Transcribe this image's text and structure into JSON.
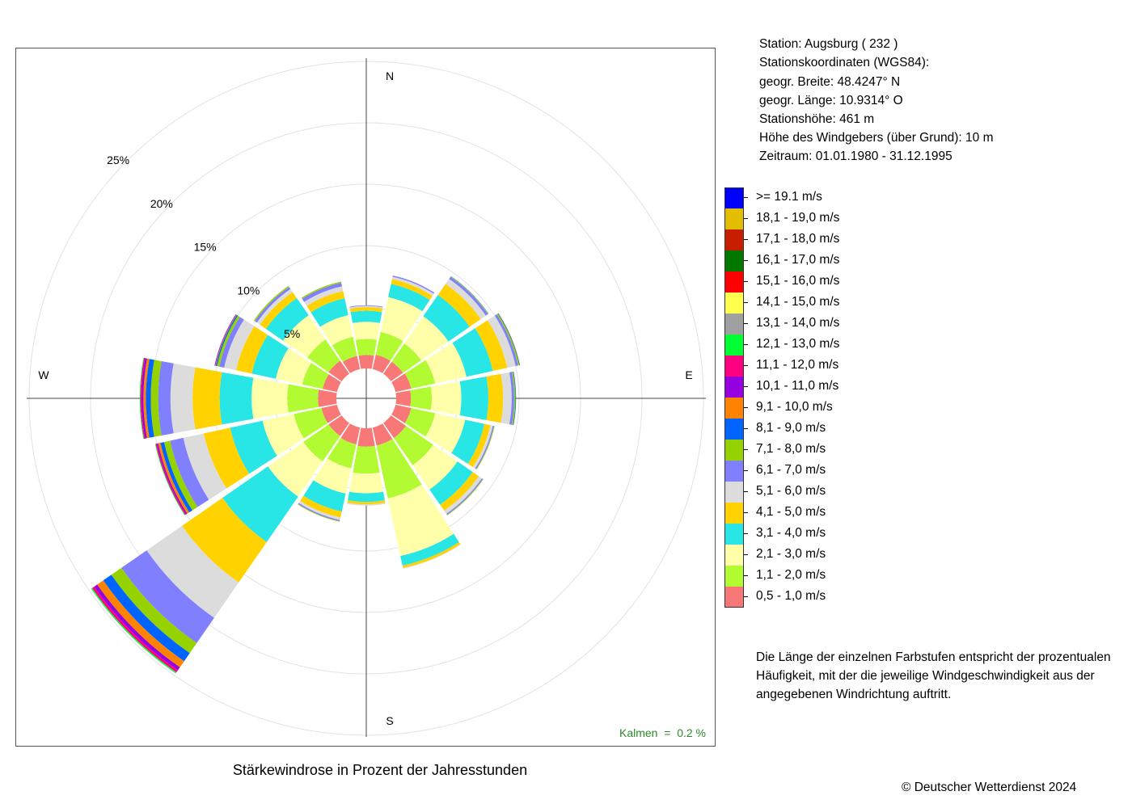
{
  "station_info": {
    "lines": [
      "Station:  Augsburg  ( 232 )",
      "Stationskoordinaten (WGS84):",
      "geogr. Breite: 48.4247° N",
      "geogr. Länge: 10.9314° O",
      "Stationshöhe: 461 m",
      "Höhe des Windgebers (über Grund): 10 m",
      "Zeitraum: 01.01.1980 - 31.12.1995"
    ]
  },
  "note": {
    "lines": [
      "Die Länge der einzelnen Farbstufen entspricht der prozentualen",
      "Häufigkeit, mit der die jeweilige Windgeschwindigkeit aus der",
      "angegebenen Windrichtung auftritt."
    ]
  },
  "title": "Stärkewindrose in Prozent der Jahresstunden",
  "copyright": "© Deutscher Wetterdienst  2024",
  "calm": "Kalmen  =  0.2 %",
  "chart_data": {
    "type": "polar-stacked-bar",
    "title": "Stärkewindrose in Prozent der Jahresstunden",
    "directions": [
      "N",
      "NNE",
      "NE",
      "ENE",
      "E",
      "ESE",
      "SE",
      "SSE",
      "S",
      "SSW",
      "SW",
      "WSW",
      "W",
      "WNW",
      "NW",
      "NNW"
    ],
    "direction_angles_deg": [
      0,
      22.5,
      45,
      67.5,
      90,
      112.5,
      135,
      157.5,
      180,
      202.5,
      225,
      247.5,
      270,
      292.5,
      315,
      337.5
    ],
    "compass_labels": [
      "N",
      "E",
      "S",
      "W"
    ],
    "radial_ticks": [
      5,
      10,
      15,
      20,
      25
    ],
    "radial_tick_labels": [
      "5%",
      "10%",
      "15%",
      "20%",
      "25%"
    ],
    "r_max": 25,
    "grid": true,
    "legend_position": "right",
    "calm_percent": 0.2,
    "speed_classes": [
      {
        "label": "0,5 - 1,0 m/s",
        "color": "#f87878"
      },
      {
        "label": "1,1 - 2,0 m/s",
        "color": "#b2fa32"
      },
      {
        "label": "2,1 - 3,0 m/s",
        "color": "#ffffaa"
      },
      {
        "label": "3,1 - 4,0 m/s",
        "color": "#28e6e6"
      },
      {
        "label": "4,1 - 5,0 m/s",
        "color": "#ffd200"
      },
      {
        "label": "5,1 - 6,0 m/s",
        "color": "#dcdcdc"
      },
      {
        "label": "6,1 - 7,0 m/s",
        "color": "#8080ff"
      },
      {
        "label": "7,1 - 8,0 m/s",
        "color": "#96d200"
      },
      {
        "label": "8,1 - 9,0 m/s",
        "color": "#0064ff"
      },
      {
        "label": "9,1 - 10,0 m/s",
        "color": "#ff8200"
      },
      {
        "label": "10,1 - 11,0 m/s",
        "color": "#9600e1"
      },
      {
        "label": "11,1 - 12,0 m/s",
        "color": "#ff0080"
      },
      {
        "label": "12,1 - 13,0 m/s",
        "color": "#00ff32"
      },
      {
        "label": "13,1 - 14,0 m/s",
        "color": "#a0a0a0"
      },
      {
        "label": "14,1 - 15,0 m/s",
        "color": "#ffff50"
      },
      {
        "label": "15,1 - 16,0 m/s",
        "color": "#ff0000"
      },
      {
        "label": "16,1 - 17,0 m/s",
        "color": "#007800"
      },
      {
        "label": "17,1 - 18,0 m/s",
        "color": "#c81e00"
      },
      {
        "label": "18,1 - 19,0 m/s",
        "color": "#e1be00"
      },
      {
        "label": ">= 19.1 m/s",
        "color": "#0000ff"
      }
    ],
    "series": [
      {
        "direction": "N",
        "values": [
          1.1,
          1.3,
          1.4,
          0.9,
          0.3,
          0.1,
          0.05,
          0,
          0,
          0,
          0,
          0,
          0,
          0,
          0,
          0,
          0,
          0,
          0,
          0
        ]
      },
      {
        "direction": "NNE",
        "values": [
          1.2,
          1.9,
          2.9,
          1.1,
          0.4,
          0.2,
          0.1,
          0,
          0,
          0,
          0,
          0,
          0,
          0,
          0,
          0,
          0,
          0,
          0,
          0
        ]
      },
      {
        "direction": "NE",
        "values": [
          1.2,
          1.8,
          2.7,
          2.1,
          1.1,
          0.5,
          0.2,
          0.05,
          0.02,
          0,
          0,
          0,
          0,
          0,
          0,
          0,
          0,
          0,
          0,
          0
        ]
      },
      {
        "direction": "ENE",
        "values": [
          1.3,
          2.0,
          2.6,
          2.2,
          1.2,
          0.7,
          0.2,
          0.1,
          0.05,
          0.02,
          0,
          0,
          0,
          0,
          0,
          0,
          0,
          0,
          0,
          0
        ]
      },
      {
        "direction": "E",
        "values": [
          1.2,
          1.7,
          2.4,
          2.2,
          1.2,
          0.7,
          0.2,
          0.1,
          0.05,
          0,
          0,
          0,
          0,
          0,
          0,
          0,
          0,
          0,
          0,
          0
        ]
      },
      {
        "direction": "ESE",
        "values": [
          1.3,
          2.0,
          2.5,
          1.6,
          0.5,
          0.2,
          0.1,
          0.05,
          0,
          0,
          0,
          0,
          0,
          0,
          0,
          0,
          0,
          0,
          0,
          0
        ]
      },
      {
        "direction": "SE",
        "values": [
          1.5,
          2.7,
          2.4,
          1.5,
          0.6,
          0.3,
          0.1,
          0.05,
          0,
          0,
          0,
          0,
          0,
          0,
          0,
          0,
          0,
          0,
          0,
          0
        ]
      },
      {
        "direction": "SSE",
        "values": [
          1.5,
          4.4,
          4.8,
          0.8,
          0.2,
          0.05,
          0,
          0,
          0,
          0,
          0,
          0,
          0,
          0,
          0,
          0,
          0,
          0,
          0,
          0
        ]
      },
      {
        "direction": "S",
        "values": [
          1.5,
          2.2,
          1.6,
          0.7,
          0.2,
          0.1,
          0,
          0,
          0,
          0,
          0,
          0,
          0,
          0,
          0,
          0,
          0,
          0,
          0,
          0
        ]
      },
      {
        "direction": "SSW",
        "values": [
          1.4,
          2.0,
          2.1,
          1.5,
          0.5,
          0.2,
          0.1,
          0.05,
          0,
          0,
          0,
          0,
          0,
          0,
          0,
          0,
          0,
          0,
          0,
          0
        ]
      },
      {
        "direction": "SW",
        "values": [
          1.3,
          2.5,
          3.5,
          4.5,
          4.0,
          3.5,
          2.5,
          1.0,
          0.8,
          0.6,
          0.3,
          0.2,
          0.1,
          0,
          0,
          0,
          0,
          0,
          0,
          0
        ]
      },
      {
        "direction": "WSW",
        "values": [
          1.3,
          2.3,
          2.6,
          2.7,
          2.2,
          1.7,
          1.1,
          0.5,
          0.3,
          0.2,
          0.1,
          0.1,
          0.05,
          0,
          0,
          0,
          0,
          0,
          0,
          0
        ]
      },
      {
        "direction": "W",
        "values": [
          1.5,
          2.5,
          2.9,
          2.6,
          2.2,
          1.8,
          1.0,
          0.6,
          0.4,
          0.2,
          0.15,
          0.1,
          0.05,
          0,
          0,
          0,
          0,
          0,
          0,
          0
        ]
      },
      {
        "direction": "WNW",
        "values": [
          1.2,
          1.7,
          2.2,
          2.0,
          1.3,
          1.0,
          0.4,
          0.2,
          0.1,
          0.05,
          0.05,
          0,
          0,
          0,
          0,
          0,
          0,
          0,
          0,
          0
        ]
      },
      {
        "direction": "NW",
        "values": [
          1.3,
          2.1,
          2.4,
          1.7,
          0.6,
          0.3,
          0.2,
          0.1,
          0,
          0,
          0,
          0,
          0,
          0,
          0,
          0,
          0,
          0,
          0,
          0
        ]
      },
      {
        "direction": "NNW",
        "values": [
          1.1,
          1.6,
          1.8,
          1.4,
          0.6,
          0.4,
          0.3,
          0.1,
          0,
          0,
          0,
          0,
          0,
          0,
          0,
          0,
          0,
          0,
          0,
          0
        ]
      }
    ]
  }
}
